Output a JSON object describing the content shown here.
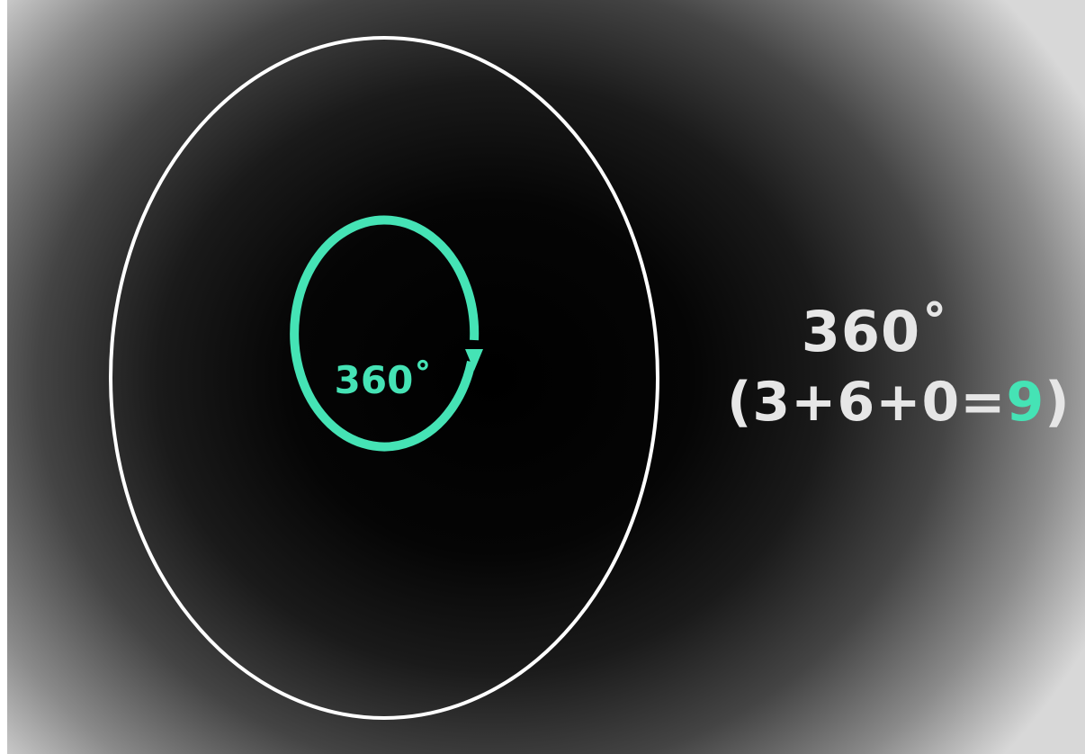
{
  "diagram": {
    "inner_label": "360˚",
    "right_degrees": "360˚",
    "equation": {
      "open_paren": "(",
      "expression": "3+6+0=",
      "result": "9",
      "close_paren": ")"
    }
  },
  "colors": {
    "accent": "#45e3b5",
    "outer_ellipse": "#ffffff",
    "text": "#e6e6e6",
    "background_center": "#000000",
    "background_edge": "#d8d8d8"
  },
  "icons": {
    "rotation_arrow": "clockwise-arrow-icon"
  }
}
